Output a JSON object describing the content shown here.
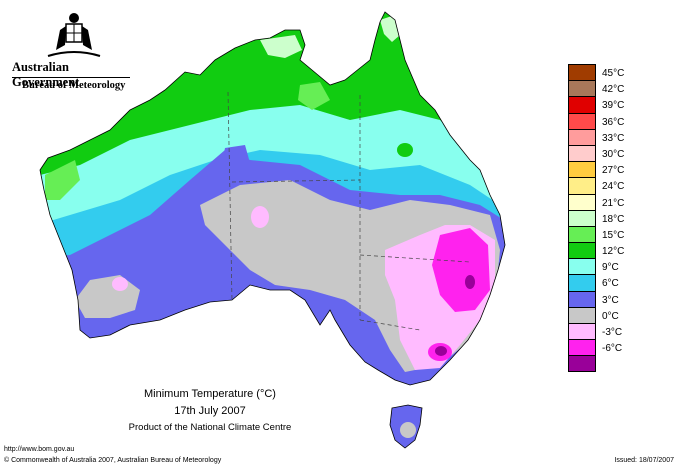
{
  "header": {
    "government": "Australian Government",
    "bureau": "Bureau of Meteorology"
  },
  "legend": [
    {
      "label": "45°C",
      "color": "#a03c00"
    },
    {
      "label": "42°C",
      "color": "#a8785a"
    },
    {
      "label": "39°C",
      "color": "#e00000"
    },
    {
      "label": "36°C",
      "color": "#ff4a4a"
    },
    {
      "label": "33°C",
      "color": "#ff9c9c"
    },
    {
      "label": "30°C",
      "color": "#ffcccc"
    },
    {
      "label": "27°C",
      "color": "#ffcc40"
    },
    {
      "label": "24°C",
      "color": "#ffee88"
    },
    {
      "label": "21°C",
      "color": "#ffffcc"
    },
    {
      "label": "18°C",
      "color": "#ccffcc"
    },
    {
      "label": "15°C",
      "color": "#66ee55"
    },
    {
      "label": "12°C",
      "color": "#11cc11"
    },
    {
      "label": "9°C",
      "color": "#88ffee"
    },
    {
      "label": "6°C",
      "color": "#33ccee"
    },
    {
      "label": "3°C",
      "color": "#6666ee"
    },
    {
      "label": "0°C",
      "color": "#c8c8c8"
    },
    {
      "label": "-3°C",
      "color": "#ffbbff"
    },
    {
      "label": "-6°C",
      "color": "#ff22ee"
    },
    {
      "label": "",
      "color": "#990099"
    }
  ],
  "title": {
    "line1": "Minimum Temperature (°C)",
    "line2": "17th July 2007",
    "line3": "Product of the National Climate Centre"
  },
  "footer": {
    "url": "http://www.bom.gov.au",
    "copyright": "© Commonwealth of Australia 2007, Australian Bureau of Meteorology",
    "issued": "Issued: 18/07/2007"
  }
}
